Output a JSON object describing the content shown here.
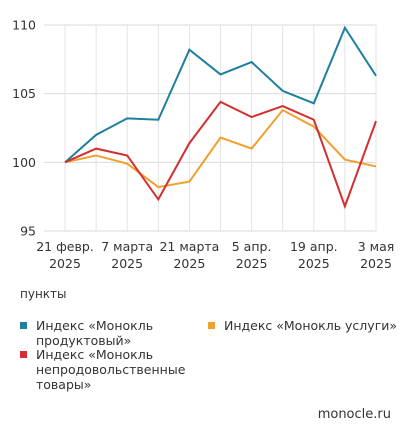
{
  "chart_data": {
    "type": "line",
    "x": [
      "21 февр.\n2025",
      "28 февр.\n2025",
      "7 марта\n2025",
      "14 марта\n2025",
      "21 марта\n2025",
      "28 марта\n2025",
      "5 апр.\n2025",
      "12 апр.\n2025",
      "19 апр.\n2025",
      "26 апр.\n2025",
      "3 мая\n2025"
    ],
    "x_tick_labels": [
      {
        "line1": "21 февр.",
        "line2": "2025"
      },
      {
        "line1": "7 марта",
        "line2": "2025"
      },
      {
        "line1": "21 марта",
        "line2": "2025"
      },
      {
        "line1": "5 апр.",
        "line2": "2025"
      },
      {
        "line1": "19 апр.",
        "line2": "2025"
      },
      {
        "line1": "3 мая",
        "line2": "2025"
      }
    ],
    "x_tick_index": [
      0,
      2,
      4,
      6,
      8,
      10
    ],
    "ylim": [
      95,
      110
    ],
    "yticks": [
      95,
      100,
      105,
      110
    ],
    "grid": true,
    "series": [
      {
        "name": "Индекс «Монокль продуктовый»",
        "color": "#1e7f9e",
        "values": [
          100.0,
          102.0,
          103.2,
          103.1,
          108.2,
          106.4,
          107.3,
          105.2,
          104.3,
          109.8,
          106.3
        ]
      },
      {
        "name": "Индекс «Монокль услуги»",
        "color": "#f0a02c",
        "values": [
          100.0,
          100.5,
          99.9,
          98.2,
          98.6,
          101.8,
          101.0,
          103.8,
          102.6,
          100.2,
          99.7
        ]
      },
      {
        "name": "Индекс «Монокль непродовольственные товары»",
        "color": "#d32f2f",
        "values": [
          100.0,
          101.0,
          100.5,
          97.3,
          101.4,
          104.4,
          103.3,
          104.1,
          103.1,
          96.8,
          103.0
        ]
      }
    ]
  },
  "units_label": "пункты",
  "legend": [
    {
      "text": "Индекс «Монокль продуктовый»",
      "color": "#1e7f9e"
    },
    {
      "text": "Индекс «Монокль услуги»",
      "color": "#f0a02c"
    },
    {
      "text": "Индекс «Монокль непродовольственные товары»",
      "color": "#d32f2f"
    }
  ],
  "source": "monocle.ru"
}
